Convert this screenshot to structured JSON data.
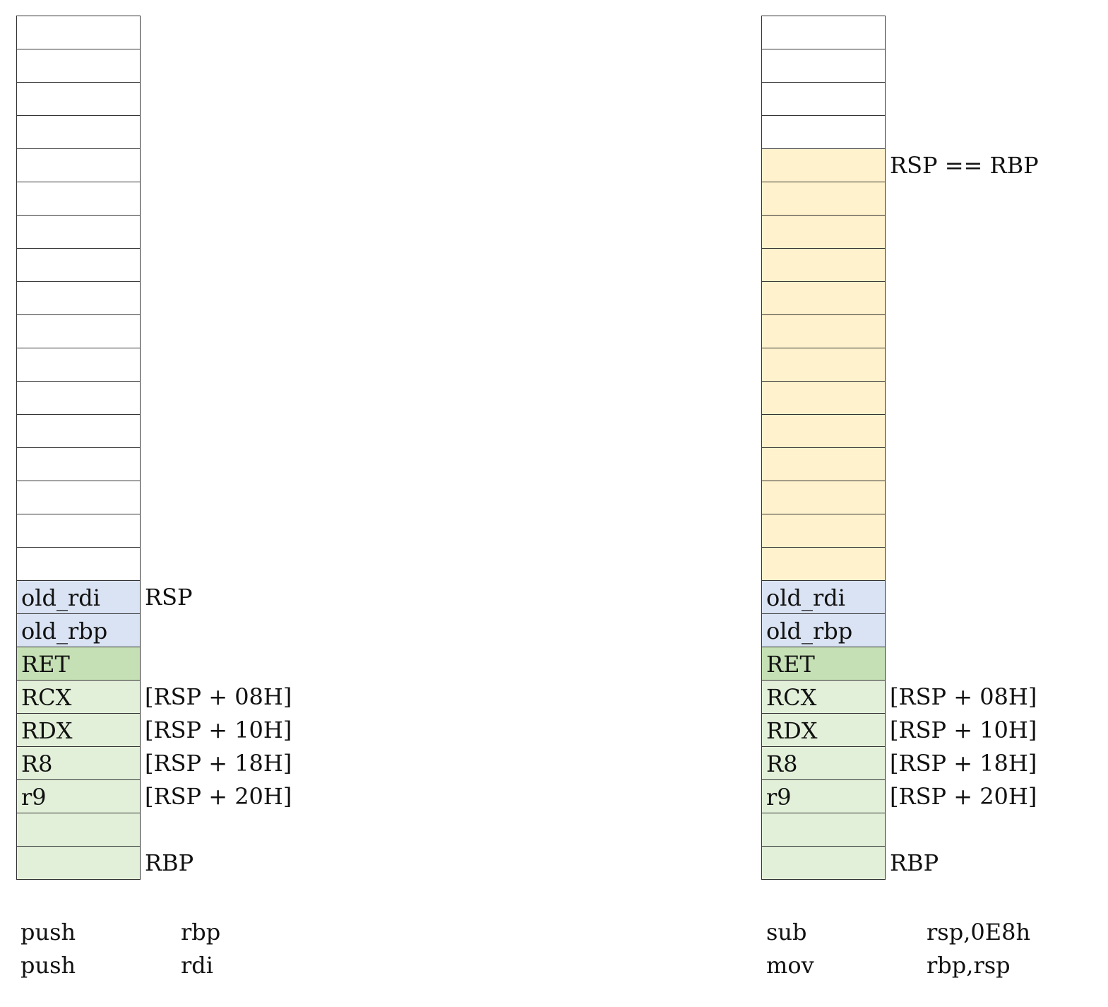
{
  "left_panel": {
    "cells": [
      {
        "text": "",
        "fill": "empty"
      },
      {
        "text": "",
        "fill": "empty"
      },
      {
        "text": "",
        "fill": "empty"
      },
      {
        "text": "",
        "fill": "empty"
      },
      {
        "text": "",
        "fill": "empty"
      },
      {
        "text": "",
        "fill": "empty"
      },
      {
        "text": "",
        "fill": "empty"
      },
      {
        "text": "",
        "fill": "empty"
      },
      {
        "text": "",
        "fill": "empty"
      },
      {
        "text": "",
        "fill": "empty"
      },
      {
        "text": "",
        "fill": "empty"
      },
      {
        "text": "",
        "fill": "empty"
      },
      {
        "text": "",
        "fill": "empty"
      },
      {
        "text": "",
        "fill": "empty"
      },
      {
        "text": "",
        "fill": "empty"
      },
      {
        "text": "",
        "fill": "empty"
      },
      {
        "text": "",
        "fill": "empty"
      },
      {
        "text": "old_rdi",
        "fill": "blue"
      },
      {
        "text": "old_rbp",
        "fill": "blue"
      },
      {
        "text": "RET",
        "fill": "green"
      },
      {
        "text": "RCX",
        "fill": "lgreen"
      },
      {
        "text": "RDX",
        "fill": "lgreen"
      },
      {
        "text": "R8",
        "fill": "lgreen"
      },
      {
        "text": "r9",
        "fill": "lgreen"
      },
      {
        "text": "",
        "fill": "lgreen"
      },
      {
        "text": "",
        "fill": "lgreen"
      }
    ],
    "labels": [
      {
        "row": 17,
        "text": "RSP"
      },
      {
        "row": 20,
        "text": "[RSP + 08H]"
      },
      {
        "row": 21,
        "text": "[RSP + 10H]"
      },
      {
        "row": 22,
        "text": "[RSP + 18H]"
      },
      {
        "row": 23,
        "text": "[RSP + 20H]"
      },
      {
        "row": 25,
        "text": "RBP"
      }
    ],
    "code": [
      {
        "op": "push",
        "arg": "rbp"
      },
      {
        "op": "push",
        "arg": "rdi"
      }
    ]
  },
  "right_panel": {
    "cells": [
      {
        "text": "",
        "fill": "empty"
      },
      {
        "text": "",
        "fill": "empty"
      },
      {
        "text": "",
        "fill": "empty"
      },
      {
        "text": "",
        "fill": "empty"
      },
      {
        "text": "",
        "fill": "yellow"
      },
      {
        "text": "",
        "fill": "yellow"
      },
      {
        "text": "",
        "fill": "yellow"
      },
      {
        "text": "",
        "fill": "yellow"
      },
      {
        "text": "",
        "fill": "yellow"
      },
      {
        "text": "",
        "fill": "yellow"
      },
      {
        "text": "",
        "fill": "yellow"
      },
      {
        "text": "",
        "fill": "yellow"
      },
      {
        "text": "",
        "fill": "yellow"
      },
      {
        "text": "",
        "fill": "yellow"
      },
      {
        "text": "",
        "fill": "yellow"
      },
      {
        "text": "",
        "fill": "yellow"
      },
      {
        "text": "",
        "fill": "yellow"
      },
      {
        "text": "old_rdi",
        "fill": "blue"
      },
      {
        "text": "old_rbp",
        "fill": "blue"
      },
      {
        "text": "RET",
        "fill": "green"
      },
      {
        "text": "RCX",
        "fill": "lgreen"
      },
      {
        "text": "RDX",
        "fill": "lgreen"
      },
      {
        "text": "R8",
        "fill": "lgreen"
      },
      {
        "text": "r9",
        "fill": "lgreen"
      },
      {
        "text": "",
        "fill": "lgreen"
      },
      {
        "text": "",
        "fill": "lgreen"
      }
    ],
    "labels": [
      {
        "row": 4,
        "text": "RSP == RBP"
      },
      {
        "row": 20,
        "text": "[RSP + 08H]"
      },
      {
        "row": 21,
        "text": "[RSP + 10H]"
      },
      {
        "row": 22,
        "text": "[RSP + 18H]"
      },
      {
        "row": 23,
        "text": "[RSP + 20H]"
      },
      {
        "row": 25,
        "text": "RBP"
      }
    ],
    "code": [
      {
        "op": "sub",
        "arg": "rsp,0E8h"
      },
      {
        "op": "mov",
        "arg": "rbp,rsp"
      }
    ]
  },
  "colors": {
    "empty": "#ffffff",
    "yellow": "#fff2cc",
    "blue": "#dae3f3",
    "green": "#c5e0b4",
    "lgreen": "#e2f0d9"
  }
}
